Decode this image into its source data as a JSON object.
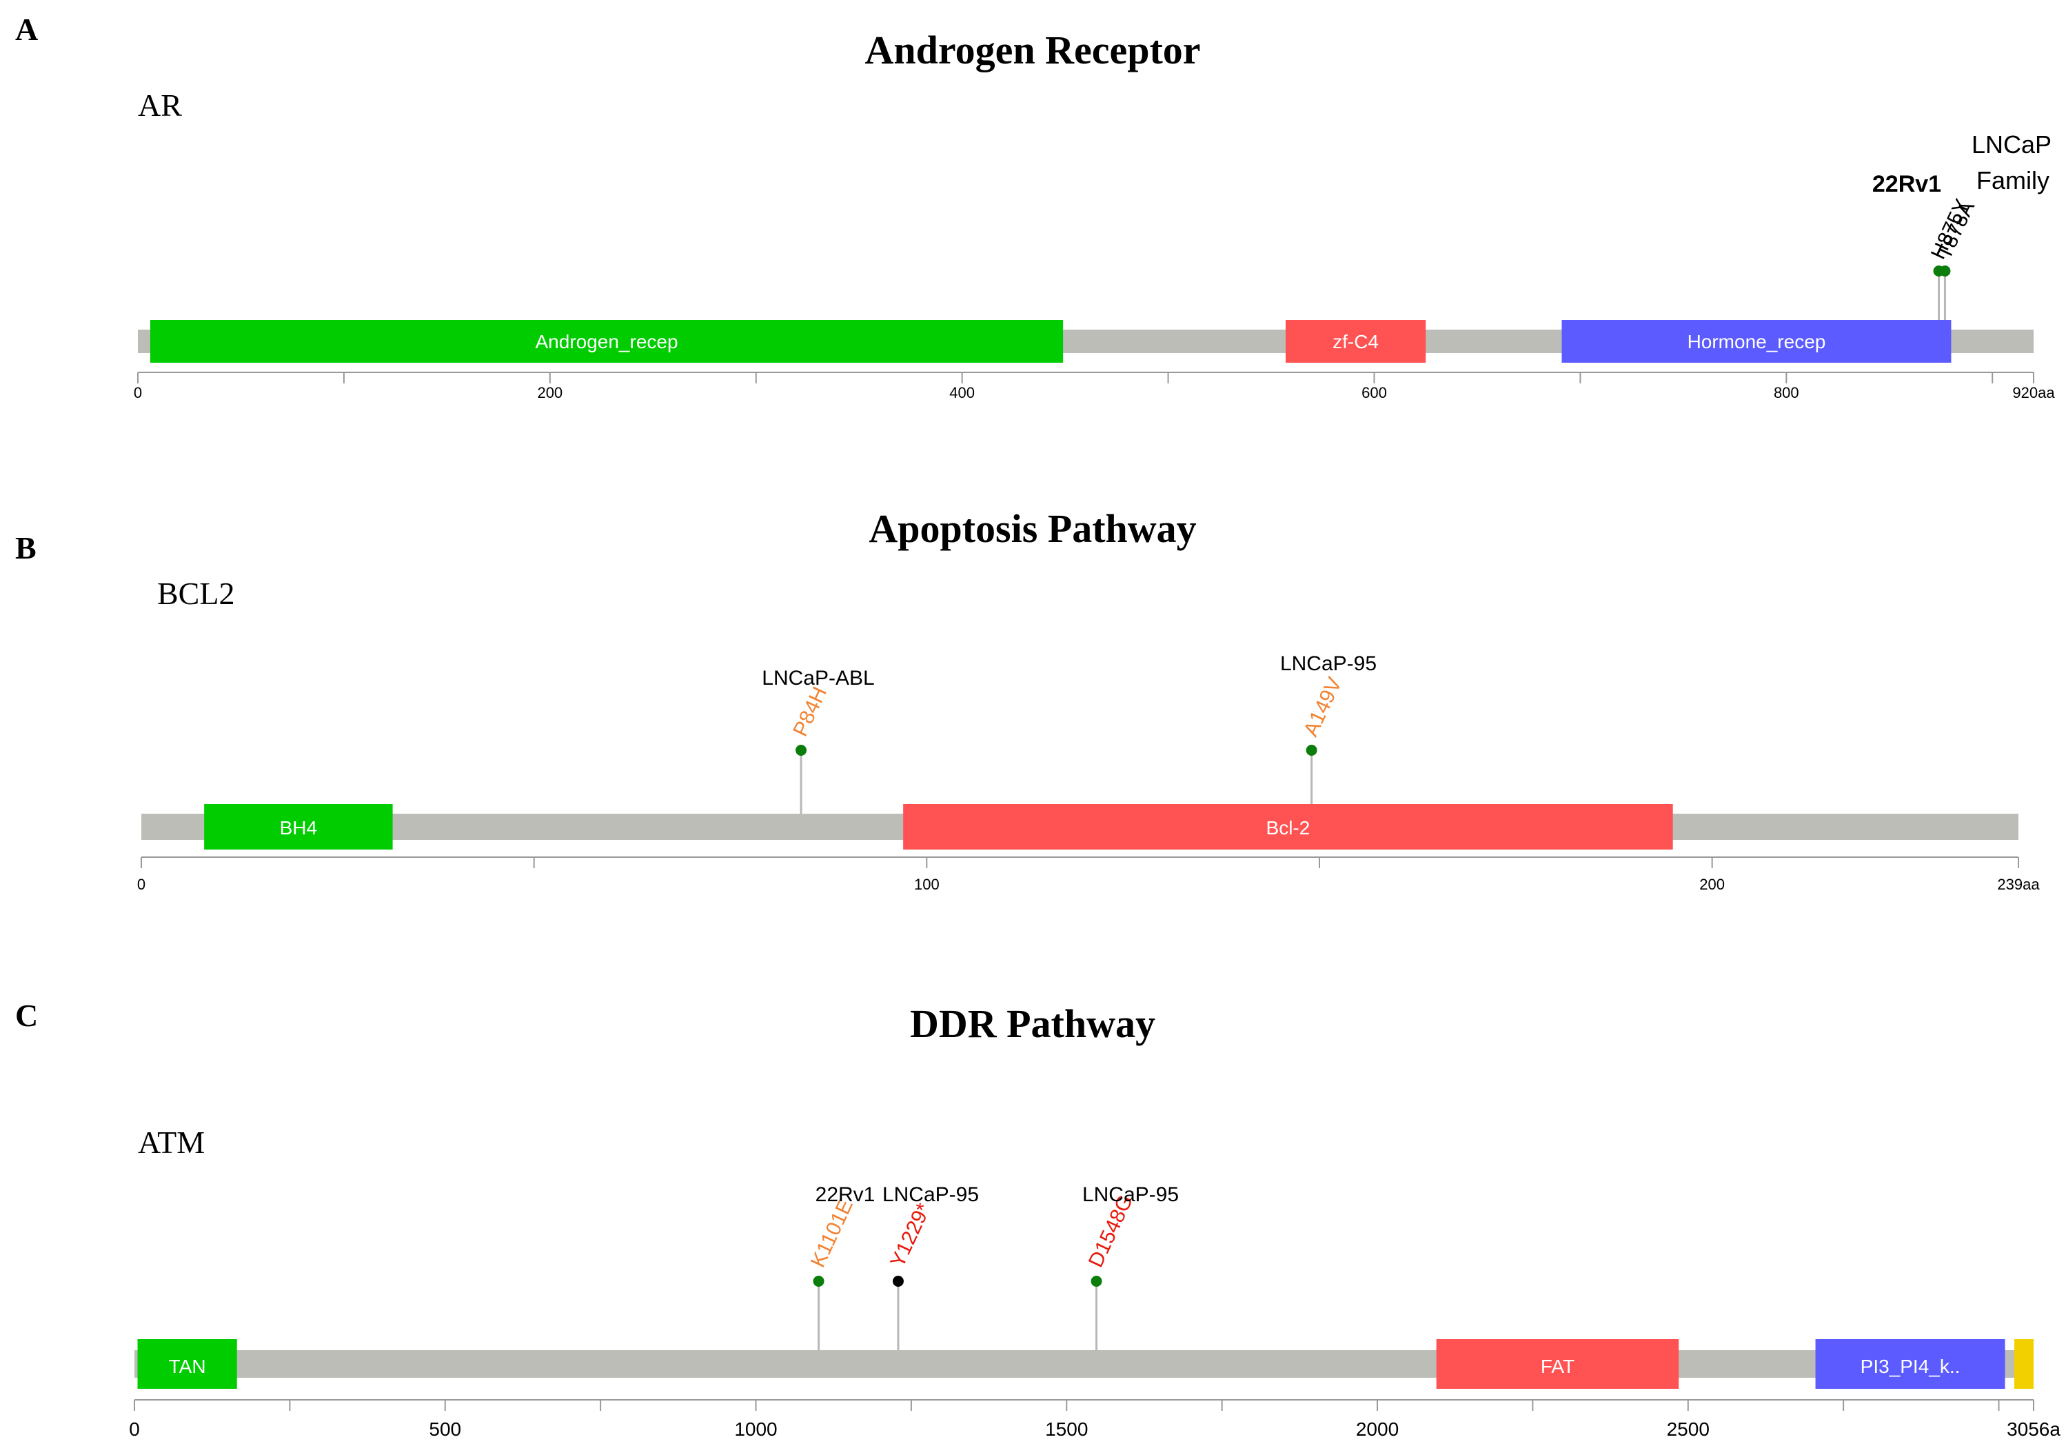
{
  "panels": [
    {
      "letter": "A",
      "title": "Androgen Receptor",
      "gene": "AR",
      "length": 920,
      "length_label": "920aa",
      "ticks": [
        0,
        100,
        200,
        300,
        400,
        500,
        600,
        700,
        800,
        900
      ],
      "tick_labels": [
        {
          "value": 0,
          "text": "0"
        },
        {
          "value": 200,
          "text": "200"
        },
        {
          "value": 400,
          "text": "400"
        },
        {
          "value": 600,
          "text": "600"
        },
        {
          "value": 800,
          "text": "800"
        }
      ],
      "domains": [
        {
          "name": "Androgen_recep",
          "start": 6,
          "end": 449,
          "color": "#00cc00"
        },
        {
          "name": "zf-C4",
          "start": 557,
          "end": 625,
          "color": "#ff5353"
        },
        {
          "name": "Hormone_recep",
          "start": 691,
          "end": 880,
          "color": "#5b5bff"
        }
      ],
      "mutations": [
        {
          "label": "H875Y",
          "position": 874,
          "color": "#000000",
          "dot": "#0a7d0a"
        },
        {
          "label": "T878A",
          "position": 877,
          "color": "#000000",
          "dot": "#0a7d0a"
        }
      ],
      "cell_labels": [
        {
          "text": "22Rv1",
          "position": 858,
          "style": "bold"
        },
        {
          "text": "LNCaP",
          "position": 910,
          "style": "big"
        },
        {
          "text": "Family",
          "position": 910,
          "style": "big"
        }
      ]
    },
    {
      "letter": "B",
      "title": "Apoptosis Pathway",
      "gene": "BCL2",
      "length": 239,
      "length_label": "239aa",
      "ticks": [
        0,
        50,
        100,
        150,
        200
      ],
      "tick_labels": [
        {
          "value": 0,
          "text": "0"
        },
        {
          "value": 100,
          "text": "100"
        },
        {
          "value": 200,
          "text": "200"
        }
      ],
      "domains": [
        {
          "name": "BH4",
          "start": 8,
          "end": 32,
          "color": "#00cc00"
        },
        {
          "name": "Bcl-2",
          "start": 97,
          "end": 195,
          "color": "#ff5353"
        }
      ],
      "mutations": [
        {
          "label": "P84H",
          "position": 84,
          "color": "#f28230",
          "dot": "#0a7d0a"
        },
        {
          "label": "A149V",
          "position": 149,
          "color": "#f28230",
          "dot": "#0a7d0a"
        }
      ],
      "cell_labels": [
        {
          "text": "LNCaP-ABL",
          "position": 86,
          "style": "normal"
        },
        {
          "text": "LNCaP-95",
          "position": 151,
          "style": "normal"
        }
      ]
    },
    {
      "letter": "C",
      "title": "DDR Pathway",
      "gene": "ATM",
      "length": 3056,
      "length_label": "3056a",
      "ticks": [
        0,
        250,
        500,
        750,
        1000,
        1250,
        1500,
        1750,
        2000,
        2250,
        2500,
        2750,
        3000
      ],
      "tick_labels": [
        {
          "value": 0,
          "text": "0"
        },
        {
          "value": 500,
          "text": "500"
        },
        {
          "value": 1000,
          "text": "1000"
        },
        {
          "value": 1500,
          "text": "1500"
        },
        {
          "value": 2000,
          "text": "2000"
        },
        {
          "value": 2500,
          "text": "2500"
        }
      ],
      "domains": [
        {
          "name": "TAN",
          "start": 5,
          "end": 165,
          "color": "#00cc00"
        },
        {
          "name": "FAT",
          "start": 2095,
          "end": 2485,
          "color": "#ff5353"
        },
        {
          "name": "PI3_PI4_k..",
          "start": 2705,
          "end": 3010,
          "color": "#5b5bff"
        },
        {
          "name": "",
          "start": 3025,
          "end": 3056,
          "color": "#f2d000"
        }
      ],
      "mutations": [
        {
          "label": "K1101E",
          "position": 1101,
          "color": "#f28230",
          "dot": "#0a7d0a"
        },
        {
          "label": "Y1229*",
          "position": 1229,
          "color": "#e8180c",
          "dot": "#000000"
        },
        {
          "label": "D1548G",
          "position": 1548,
          "color": "#e8180c",
          "dot": "#0a7d0a"
        }
      ],
      "cell_labels": [
        {
          "text": "22Rv1",
          "position": 1098,
          "style": "normal"
        },
        {
          "text": "LNCaP-95",
          "position": 1285,
          "style": "normal"
        },
        {
          "text": "LNCaP-95",
          "position": 1604,
          "style": "normal"
        }
      ]
    }
  ]
}
